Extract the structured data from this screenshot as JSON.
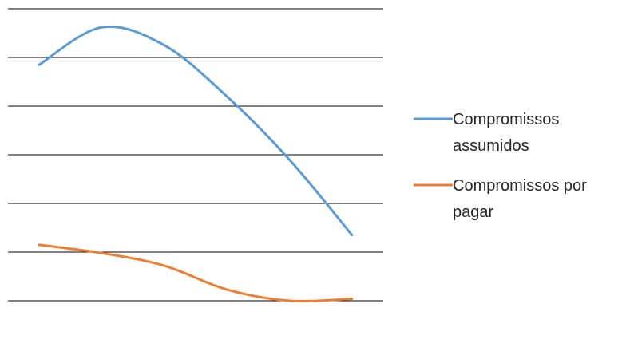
{
  "chart_data": {
    "type": "line",
    "x": [
      1,
      2,
      3,
      4,
      5,
      6
    ],
    "series": [
      {
        "name": "Compromissos assumidos",
        "color": "#5B9BD5",
        "values": [
          5.85,
          6.62,
          6.25,
          5.2,
          3.9,
          2.35
        ]
      },
      {
        "name": "Compromissos por pagar",
        "color": "#ED7D31",
        "values": [
          2.15,
          1.98,
          1.72,
          1.23,
          1.0,
          1.04
        ]
      }
    ],
    "ylim": [
      1,
      7
    ],
    "yticks": [
      1,
      2,
      3,
      4,
      5,
      6,
      7
    ],
    "grid": true,
    "legend_position": "right",
    "legend": [
      {
        "line1": "Compromissos",
        "line2": "assumidos"
      },
      {
        "line1": "Compromissos por",
        "line2": "pagar"
      }
    ]
  }
}
